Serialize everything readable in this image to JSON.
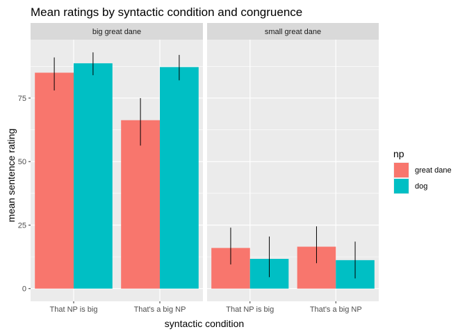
{
  "chart_data": {
    "type": "bar",
    "title": "Mean ratings by syntactic condition and congruence",
    "xlabel": "syntactic condition",
    "ylabel": "mean sentence rating",
    "ylim": [
      -5,
      98
    ],
    "yticks": [
      0,
      25,
      50,
      75
    ],
    "categories": [
      "That NP is big",
      "That's a big NP"
    ],
    "legend": {
      "title": "np",
      "position": "right"
    },
    "grid": true,
    "series_colors": [
      "#F8766D",
      "#00BFC4"
    ],
    "panels": [
      {
        "label": "big great dane",
        "series": [
          {
            "name": "great dane",
            "values": [
              85,
              66.3
            ],
            "error_low": [
              78,
              56.3
            ],
            "error_high": [
              91,
              75
            ]
          },
          {
            "name": "dog",
            "values": [
              88.7,
              87.2
            ],
            "error_low": [
              84,
              82
            ],
            "error_high": [
              93,
              92
            ]
          }
        ]
      },
      {
        "label": "small great dane",
        "series": [
          {
            "name": "great dane",
            "values": [
              16,
              16.5
            ],
            "error_low": [
              9.5,
              10
            ],
            "error_high": [
              24,
              24.5
            ]
          },
          {
            "name": "dog",
            "values": [
              11.7,
              11.2
            ],
            "error_low": [
              4.5,
              4
            ],
            "error_high": [
              20.5,
              18.5
            ]
          }
        ]
      }
    ]
  }
}
